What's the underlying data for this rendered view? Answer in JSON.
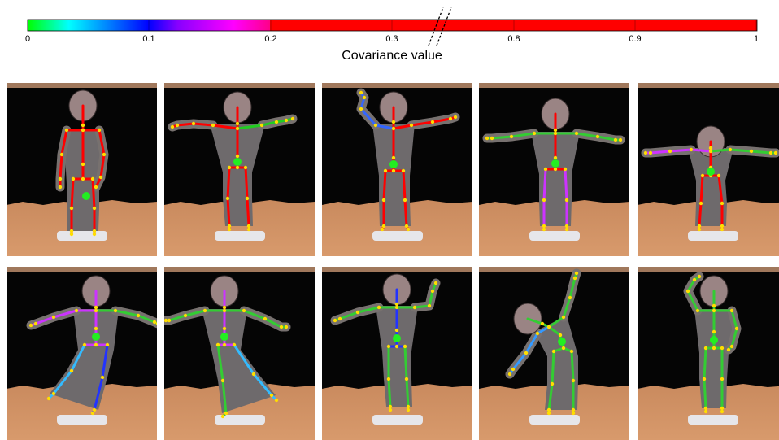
{
  "colorbar": {
    "title": "Covariance value",
    "ticks": [
      "0",
      "0.1",
      "0.2",
      "0.3",
      "0.8",
      "0.9",
      "1"
    ],
    "gradient_stops": [
      "#00ff00",
      "#00ffff",
      "#0000ff",
      "#ff00ff",
      "#ff0000"
    ],
    "high_color": "#ff0000",
    "break_marker": "axis-break"
  },
  "chart_data": {
    "type": "heatmap",
    "title": "",
    "xlabel": "Covariance value",
    "ylabel": "",
    "scale": "piecewise (axis break between 0.3 and 0.8)",
    "x": [
      0,
      0.1,
      0.2,
      0.3,
      0.8,
      0.9,
      1
    ],
    "xlim": [
      0,
      1
    ],
    "colors": [
      "#00ff00",
      "#0000ff",
      "#ff00ff",
      "#ff0000",
      "#ff0000",
      "#ff0000",
      "#ff0000"
    ],
    "legend": "top"
  },
  "frames": [
    {
      "pose": "hands-down",
      "colors": {
        "torso": "#ff0000",
        "leftArm": "#ff0000",
        "rightArm": "#ff0000",
        "leftLeg": "#ff0000",
        "rightLeg": "#ff0000",
        "head": "#ff0000"
      }
    },
    {
      "pose": "t-pose-right-lowered",
      "colors": {
        "torso": "#ff0000",
        "leftArm": "#ff0000",
        "rightArm": "#22cc22",
        "leftLeg": "#ff0000",
        "rightLeg": "#ff0000",
        "head": "#ff0000"
      }
    },
    {
      "pose": "left-arm-raised",
      "colors": {
        "torso": "#ff0000",
        "leftArm": "#3366ff",
        "rightArm": "#ff0000",
        "leftLeg": "#ff0000",
        "rightLeg": "#ff0000",
        "head": "#ff0000"
      }
    },
    {
      "pose": "t-pose",
      "colors": {
        "torso": "#ff0000",
        "leftArm": "#33cc33",
        "rightArm": "#33cc33",
        "leftLeg": "#cc33ff",
        "rightLeg": "#cc33ff",
        "head": "#ff0000"
      }
    },
    {
      "pose": "t-pose-lean",
      "colors": {
        "torso": "#ff0000",
        "leftArm": "#cc33ff",
        "rightArm": "#33cc33",
        "leftLeg": "#ff0000",
        "rightLeg": "#ff0000",
        "head": "#ff0000"
      }
    },
    {
      "pose": "balance-left-kick",
      "colors": {
        "torso": "#cc33ff",
        "leftArm": "#cc33ff",
        "rightArm": "#33cc33",
        "leftLeg": "#33bbff",
        "rightLeg": "#2233ff",
        "head": "#cc33ff"
      }
    },
    {
      "pose": "balance-right-kick",
      "colors": {
        "torso": "#cc33ff",
        "leftArm": "#33cc33",
        "rightArm": "#33cc33",
        "leftLeg": "#33cc33",
        "rightLeg": "#33bbff",
        "head": "#cc33ff"
      }
    },
    {
      "pose": "right-arm-raised",
      "colors": {
        "torso": "#2233ff",
        "leftArm": "#33cc33",
        "rightArm": "#33cc33",
        "leftLeg": "#33cc33",
        "rightLeg": "#33cc33",
        "head": "#2233ff"
      }
    },
    {
      "pose": "side-bend",
      "colors": {
        "torso": "#33cc33",
        "leftArm": "#3399ff",
        "rightArm": "#33cc33",
        "leftLeg": "#33cc33",
        "rightLeg": "#33cc33",
        "head": "#33cc33"
      }
    },
    {
      "pose": "hand-on-head",
      "colors": {
        "torso": "#33cc33",
        "leftArm": "#33cc33",
        "rightArm": "#33cc33",
        "leftLeg": "#33cc33",
        "rightLeg": "#33cc33",
        "head": "#33cc33"
      }
    }
  ]
}
